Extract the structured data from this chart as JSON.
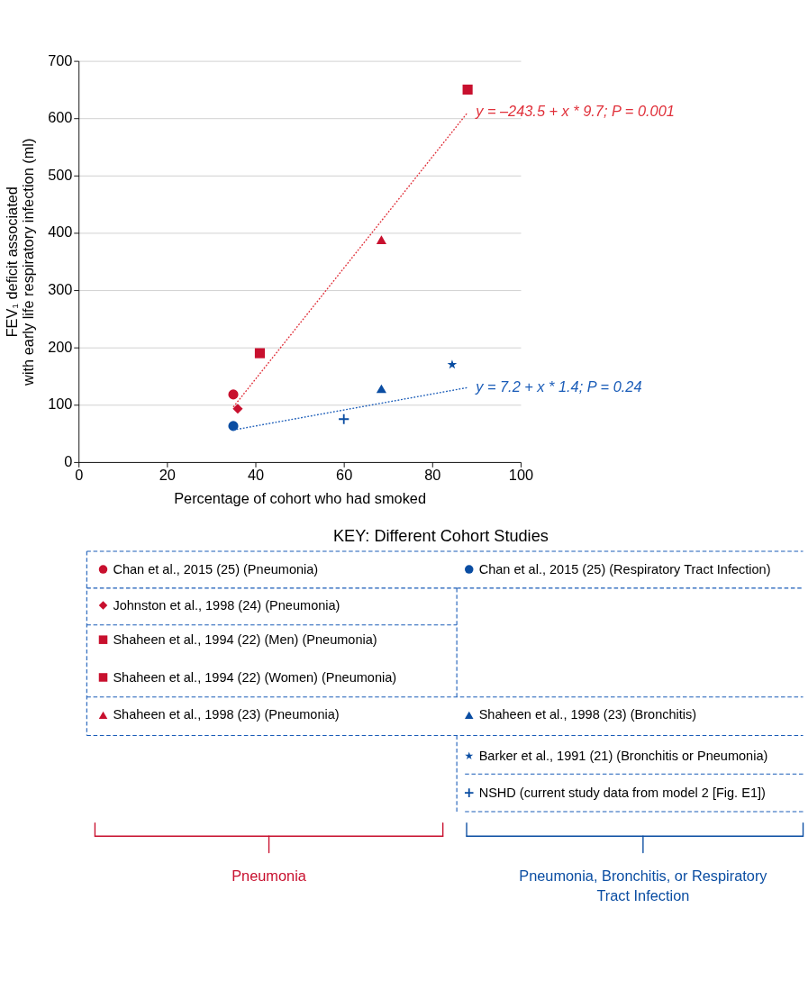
{
  "chart_data": {
    "type": "scatter",
    "xlabel": "Percentage of cohort who had smoked",
    "ylabel": "FEV₁ deficit associated\nwith early life respiratory  infection (ml)",
    "legend_title": "KEY: Different Cohort Studies",
    "xlim": [
      0,
      100
    ],
    "xticks": [
      0,
      20,
      40,
      60,
      80,
      100
    ],
    "ylim": [
      0,
      700
    ],
    "yticks": [
      0,
      100,
      200,
      300,
      400,
      500,
      600,
      700
    ],
    "grid": "y",
    "legend": "bottom",
    "series": [
      {
        "name": "Chan et al., 2015 (25) (Pneumonia)",
        "color": "#c8102e",
        "marker": "circle",
        "x": [
          35
        ],
        "values": [
          118
        ]
      },
      {
        "name": "Johnston et al., 1998 (24) (Pneumonia)",
        "color": "#c8102e",
        "marker": "diamond",
        "x": [
          36
        ],
        "values": [
          93
        ]
      },
      {
        "name": "Shaheen et al., 1994 (22) (Men) (Pneumonia)",
        "color": "#c8102e",
        "marker": "square",
        "x": [
          88
        ],
        "values": [
          650
        ]
      },
      {
        "name": "Shaheen et al., 1994 (22) (Women) (Pneumonia)",
        "color": "#c8102e",
        "marker": "square",
        "x": [
          41
        ],
        "values": [
          190
        ]
      },
      {
        "name": "Shaheen et al., 1998 (23) (Pneumonia)",
        "color": "#c8102e",
        "marker": "triangle",
        "x": [
          68.5
        ],
        "values": [
          388
        ]
      },
      {
        "name": "Chan et al., 2015 (25) (Respiratory Tract Infection)",
        "color": "#0a4da2",
        "marker": "circle",
        "x": [
          35
        ],
        "values": [
          63
        ]
      },
      {
        "name": "Shaheen et al., 1998 (23) (Bronchitis)",
        "color": "#0a4da2",
        "marker": "triangle",
        "x": [
          68.5
        ],
        "values": [
          128
        ]
      },
      {
        "name": "Barker et al., 1991 (21) (Bronchitis or Pneumonia)",
        "color": "#0a4da2",
        "marker": "star",
        "x": [
          84.5
        ],
        "values": [
          170
        ]
      },
      {
        "name": "NSHD (current study data from model 2 [Fig. E1])",
        "color": "#0a4da2",
        "marker": "cross",
        "x": [
          60
        ],
        "values": [
          75
        ]
      },
      {
        "type": "line",
        "color": "#e0303a",
        "line_style": "dotted",
        "x": [
          35,
          88
        ],
        "values": [
          96,
          610
        ]
      },
      {
        "type": "line",
        "color": "#1a5cb8",
        "line_style": "dotted",
        "x": [
          35,
          88
        ],
        "values": [
          56,
          130
        ]
      }
    ],
    "annotations": [
      {
        "text": "y = –243.5 + x * 9.7; P = 0.001",
        "x": 88,
        "y": 610
      },
      {
        "text": "y = 7.2 + x * 1.4; P = 0.24",
        "x": 88,
        "y": 130
      },
      "Pneumonia",
      "Pneumonia, Bronchitis, or Respiratory Tract Infection"
    ]
  }
}
